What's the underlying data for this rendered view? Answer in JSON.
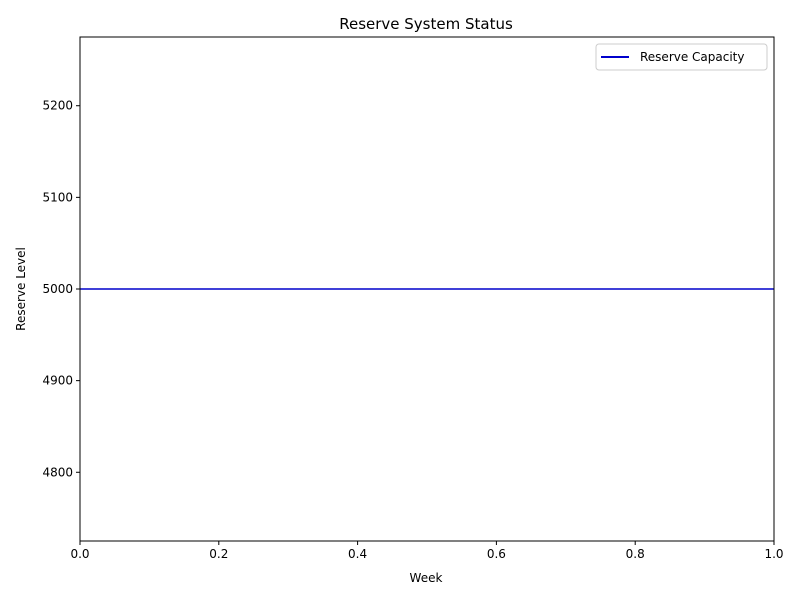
{
  "chart_data": {
    "type": "line",
    "title": "Reserve System Status",
    "xlabel": "Week",
    "ylabel": "Reserve Level",
    "xlim": [
      0.0,
      1.0
    ],
    "ylim": [
      4725,
      5275
    ],
    "xticks": [
      "0.0",
      "0.2",
      "0.4",
      "0.6",
      "0.8",
      "1.0"
    ],
    "yticks": [
      "4800",
      "4900",
      "5000",
      "5100",
      "5200"
    ],
    "grid": false,
    "legend_position": "upper right",
    "series": [
      {
        "name": "Reserve Capacity",
        "color": "#0000cc",
        "x": [
          0.0,
          1.0
        ],
        "y": [
          5000,
          5000
        ]
      }
    ]
  }
}
